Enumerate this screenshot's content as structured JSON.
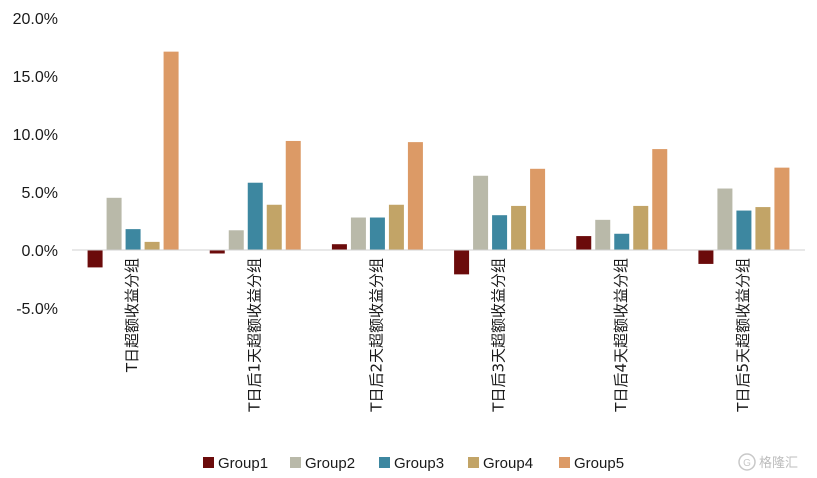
{
  "chart_data": {
    "type": "bar",
    "title": "",
    "xlabel": "",
    "ylabel": "",
    "ylim": [
      -5.0,
      20.0
    ],
    "y_ticks": [
      "20.0%",
      "15.0%",
      "10.0%",
      "5.0%",
      "0.0%",
      "-5.0%"
    ],
    "grid": false,
    "legend_position": "bottom",
    "categories": [
      "T日超额收益分组",
      "T日后1天超额收益分组",
      "T日后2天超额收益分组",
      "T日后3天超额收益分组",
      "T日后4天超额收益分组",
      "T日后5天超额收益分组"
    ],
    "series": [
      {
        "name": "Group1",
        "color": "#6b0b0b",
        "values": [
          -1.5,
          -0.3,
          0.5,
          -2.1,
          1.2,
          -1.2
        ]
      },
      {
        "name": "Group2",
        "color": "#b9b9a9",
        "values": [
          4.5,
          1.7,
          2.8,
          6.4,
          2.6,
          5.3
        ]
      },
      {
        "name": "Group3",
        "color": "#3d87a0",
        "values": [
          1.8,
          5.8,
          2.8,
          3.0,
          1.4,
          3.4
        ]
      },
      {
        "name": "Group4",
        "color": "#c2a467",
        "values": [
          0.7,
          3.9,
          3.9,
          3.8,
          3.8,
          3.7
        ]
      },
      {
        "name": "Group5",
        "color": "#dc9a66",
        "values": [
          17.1,
          9.4,
          9.3,
          7.0,
          8.7,
          7.1
        ]
      }
    ]
  },
  "watermark": {
    "text": "格隆汇"
  }
}
